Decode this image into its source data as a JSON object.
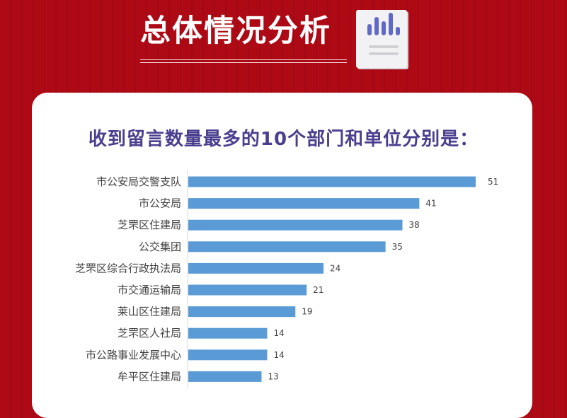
{
  "header": {
    "title": "总体情况分析",
    "icon": "bar-chart-document-icon"
  },
  "colors": {
    "background": "#ad0a16",
    "card": "#ffffff",
    "title": "#4a3f8f",
    "bar": "#5b9bd5"
  },
  "chart_data": {
    "type": "bar",
    "orientation": "horizontal",
    "title": "收到留言数量最多的10个部门和单位分别是：",
    "categories": [
      "市公安局交警支队",
      "市公安局",
      "芝罘区住建局",
      "公交集团",
      "芝罘区综合行政执法局",
      "市交通运输局",
      "莱山区住建局",
      "芝罘区人社局",
      "市公路事业发展中心",
      "牟平区住建局"
    ],
    "values": [
      51,
      41,
      38,
      35,
      24,
      21,
      19,
      14,
      14,
      13
    ],
    "xlim": [
      0,
      51
    ],
    "grid": false,
    "legend": "none",
    "data_labels": true
  }
}
